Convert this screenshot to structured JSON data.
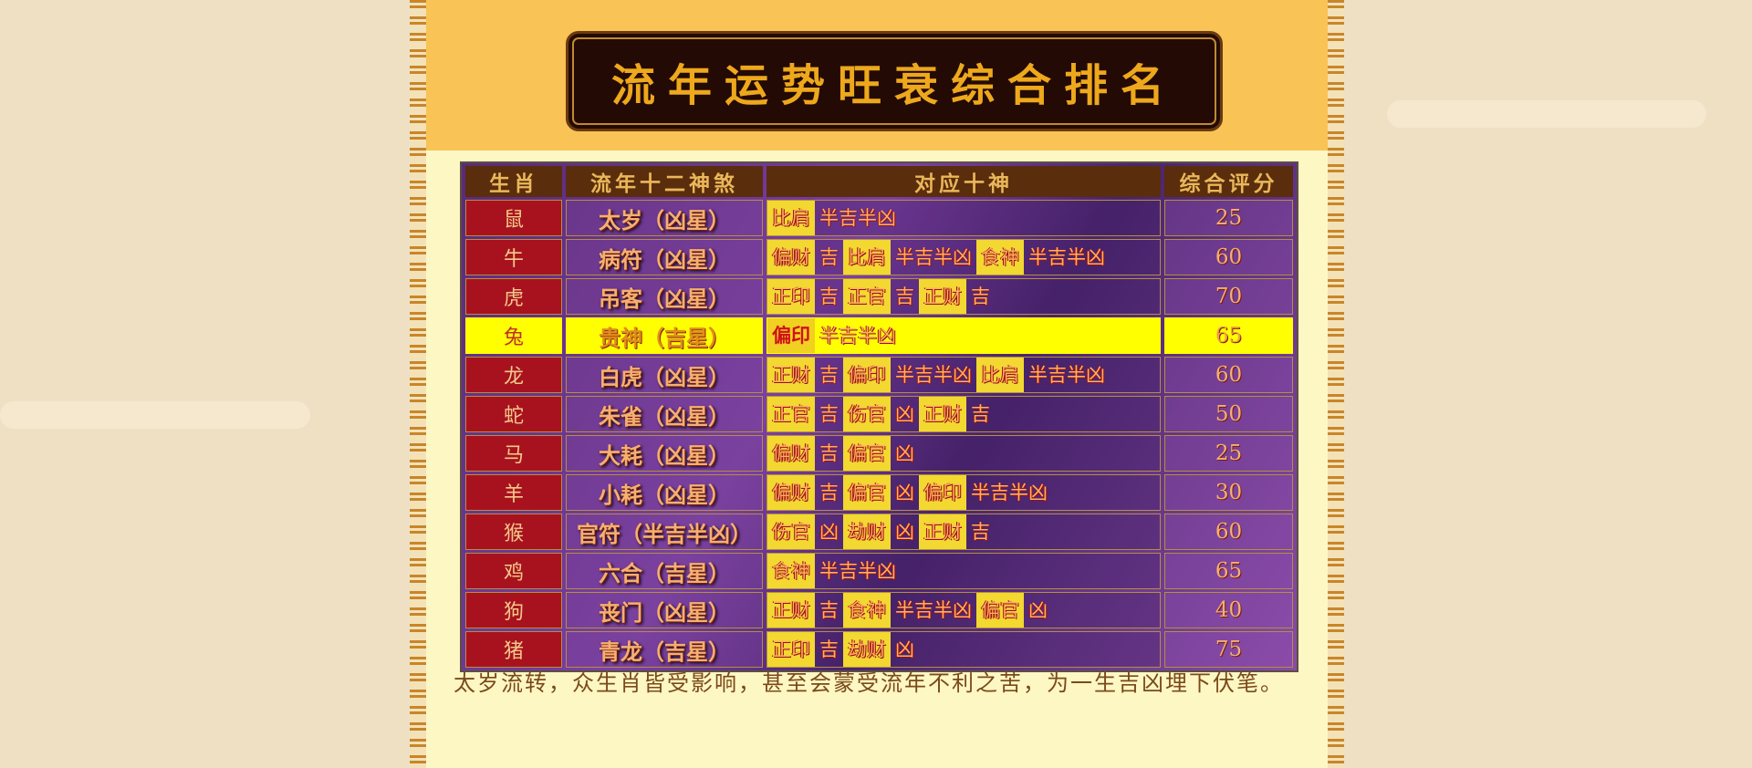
{
  "title": "流年运势旺衰综合排名",
  "headers": [
    "生肖",
    "流年十二神煞",
    "对应十神",
    "综合评分"
  ],
  "rows": [
    {
      "zodiac": "鼠",
      "star": "太岁（凶星）",
      "gods": [
        {
          "text": "比肩",
          "hl": true
        },
        {
          "text": "半吉半凶",
          "hl": false
        }
      ],
      "score": "25"
    },
    {
      "zodiac": "牛",
      "star": "病符（凶星）",
      "gods": [
        {
          "text": "偏财",
          "hl": true
        },
        {
          "text": "吉",
          "hl": false
        },
        {
          "text": "比肩",
          "hl": true
        },
        {
          "text": "半吉半凶",
          "hl": false
        },
        {
          "text": "食神",
          "hl": true
        },
        {
          "text": "半吉半凶",
          "hl": false
        }
      ],
      "score": "60"
    },
    {
      "zodiac": "虎",
      "star": "吊客（凶星）",
      "gods": [
        {
          "text": "正印",
          "hl": true
        },
        {
          "text": "吉",
          "hl": false
        },
        {
          "text": "正官",
          "hl": true
        },
        {
          "text": "吉",
          "hl": false
        },
        {
          "text": "正财",
          "hl": true
        },
        {
          "text": "吉",
          "hl": false
        }
      ],
      "score": "70"
    },
    {
      "zodiac": "兔",
      "star": "贵神（吉星）",
      "gods": [
        {
          "text": "偏印",
          "hl": true
        },
        {
          "text": "半吉半凶",
          "hl": false
        }
      ],
      "score": "65",
      "highlighted": true
    },
    {
      "zodiac": "龙",
      "star": "白虎（凶星）",
      "gods": [
        {
          "text": "正财",
          "hl": true
        },
        {
          "text": "吉",
          "hl": false
        },
        {
          "text": "偏印",
          "hl": true
        },
        {
          "text": "半吉半凶",
          "hl": false
        },
        {
          "text": "比肩",
          "hl": true
        },
        {
          "text": "半吉半凶",
          "hl": false
        }
      ],
      "score": "60"
    },
    {
      "zodiac": "蛇",
      "star": "朱雀（凶星）",
      "gods": [
        {
          "text": "正官",
          "hl": true
        },
        {
          "text": "吉",
          "hl": false
        },
        {
          "text": "伤官",
          "hl": true
        },
        {
          "text": "凶",
          "hl": false
        },
        {
          "text": "正财",
          "hl": true
        },
        {
          "text": "吉",
          "hl": false
        }
      ],
      "score": "50"
    },
    {
      "zodiac": "马",
      "star": "大耗（凶星）",
      "gods": [
        {
          "text": "偏财",
          "hl": true
        },
        {
          "text": "吉",
          "hl": false
        },
        {
          "text": "偏官",
          "hl": true
        },
        {
          "text": "凶",
          "hl": false
        }
      ],
      "score": "25"
    },
    {
      "zodiac": "羊",
      "star": "小耗（凶星）",
      "gods": [
        {
          "text": "偏财",
          "hl": true
        },
        {
          "text": "吉",
          "hl": false
        },
        {
          "text": "偏官",
          "hl": true
        },
        {
          "text": "凶",
          "hl": false
        },
        {
          "text": "偏印",
          "hl": true
        },
        {
          "text": "半吉半凶",
          "hl": false
        }
      ],
      "score": "30"
    },
    {
      "zodiac": "猴",
      "star": "官符（半吉半凶）",
      "gods": [
        {
          "text": "伤官",
          "hl": true
        },
        {
          "text": "凶",
          "hl": false
        },
        {
          "text": "劫财",
          "hl": true
        },
        {
          "text": "凶",
          "hl": false
        },
        {
          "text": "正财",
          "hl": true
        },
        {
          "text": "吉",
          "hl": false
        }
      ],
      "score": "60"
    },
    {
      "zodiac": "鸡",
      "star": "六合（吉星）",
      "gods": [
        {
          "text": "食神",
          "hl": true
        },
        {
          "text": "半吉半凶",
          "hl": false
        }
      ],
      "score": "65"
    },
    {
      "zodiac": "狗",
      "star": "丧门（凶星）",
      "gods": [
        {
          "text": "正财",
          "hl": true
        },
        {
          "text": "吉",
          "hl": false
        },
        {
          "text": "食神",
          "hl": true
        },
        {
          "text": "半吉半凶",
          "hl": false
        },
        {
          "text": "偏官",
          "hl": true
        },
        {
          "text": "凶",
          "hl": false
        }
      ],
      "score": "40"
    },
    {
      "zodiac": "猪",
      "star": "青龙（吉星）",
      "gods": [
        {
          "text": "正印",
          "hl": true
        },
        {
          "text": "吉",
          "hl": false
        },
        {
          "text": "劫财",
          "hl": true
        },
        {
          "text": "凶",
          "hl": false
        }
      ],
      "score": "75"
    }
  ],
  "footer": "太岁流转，众生肖皆受影响，甚至会蒙受流年不利之苦，为一生吉凶埋下伏笔。",
  "colors": {
    "highlight_row": "#ffff00",
    "header_bg": "#f9c355",
    "zodiac_cell": "#a8121e"
  }
}
